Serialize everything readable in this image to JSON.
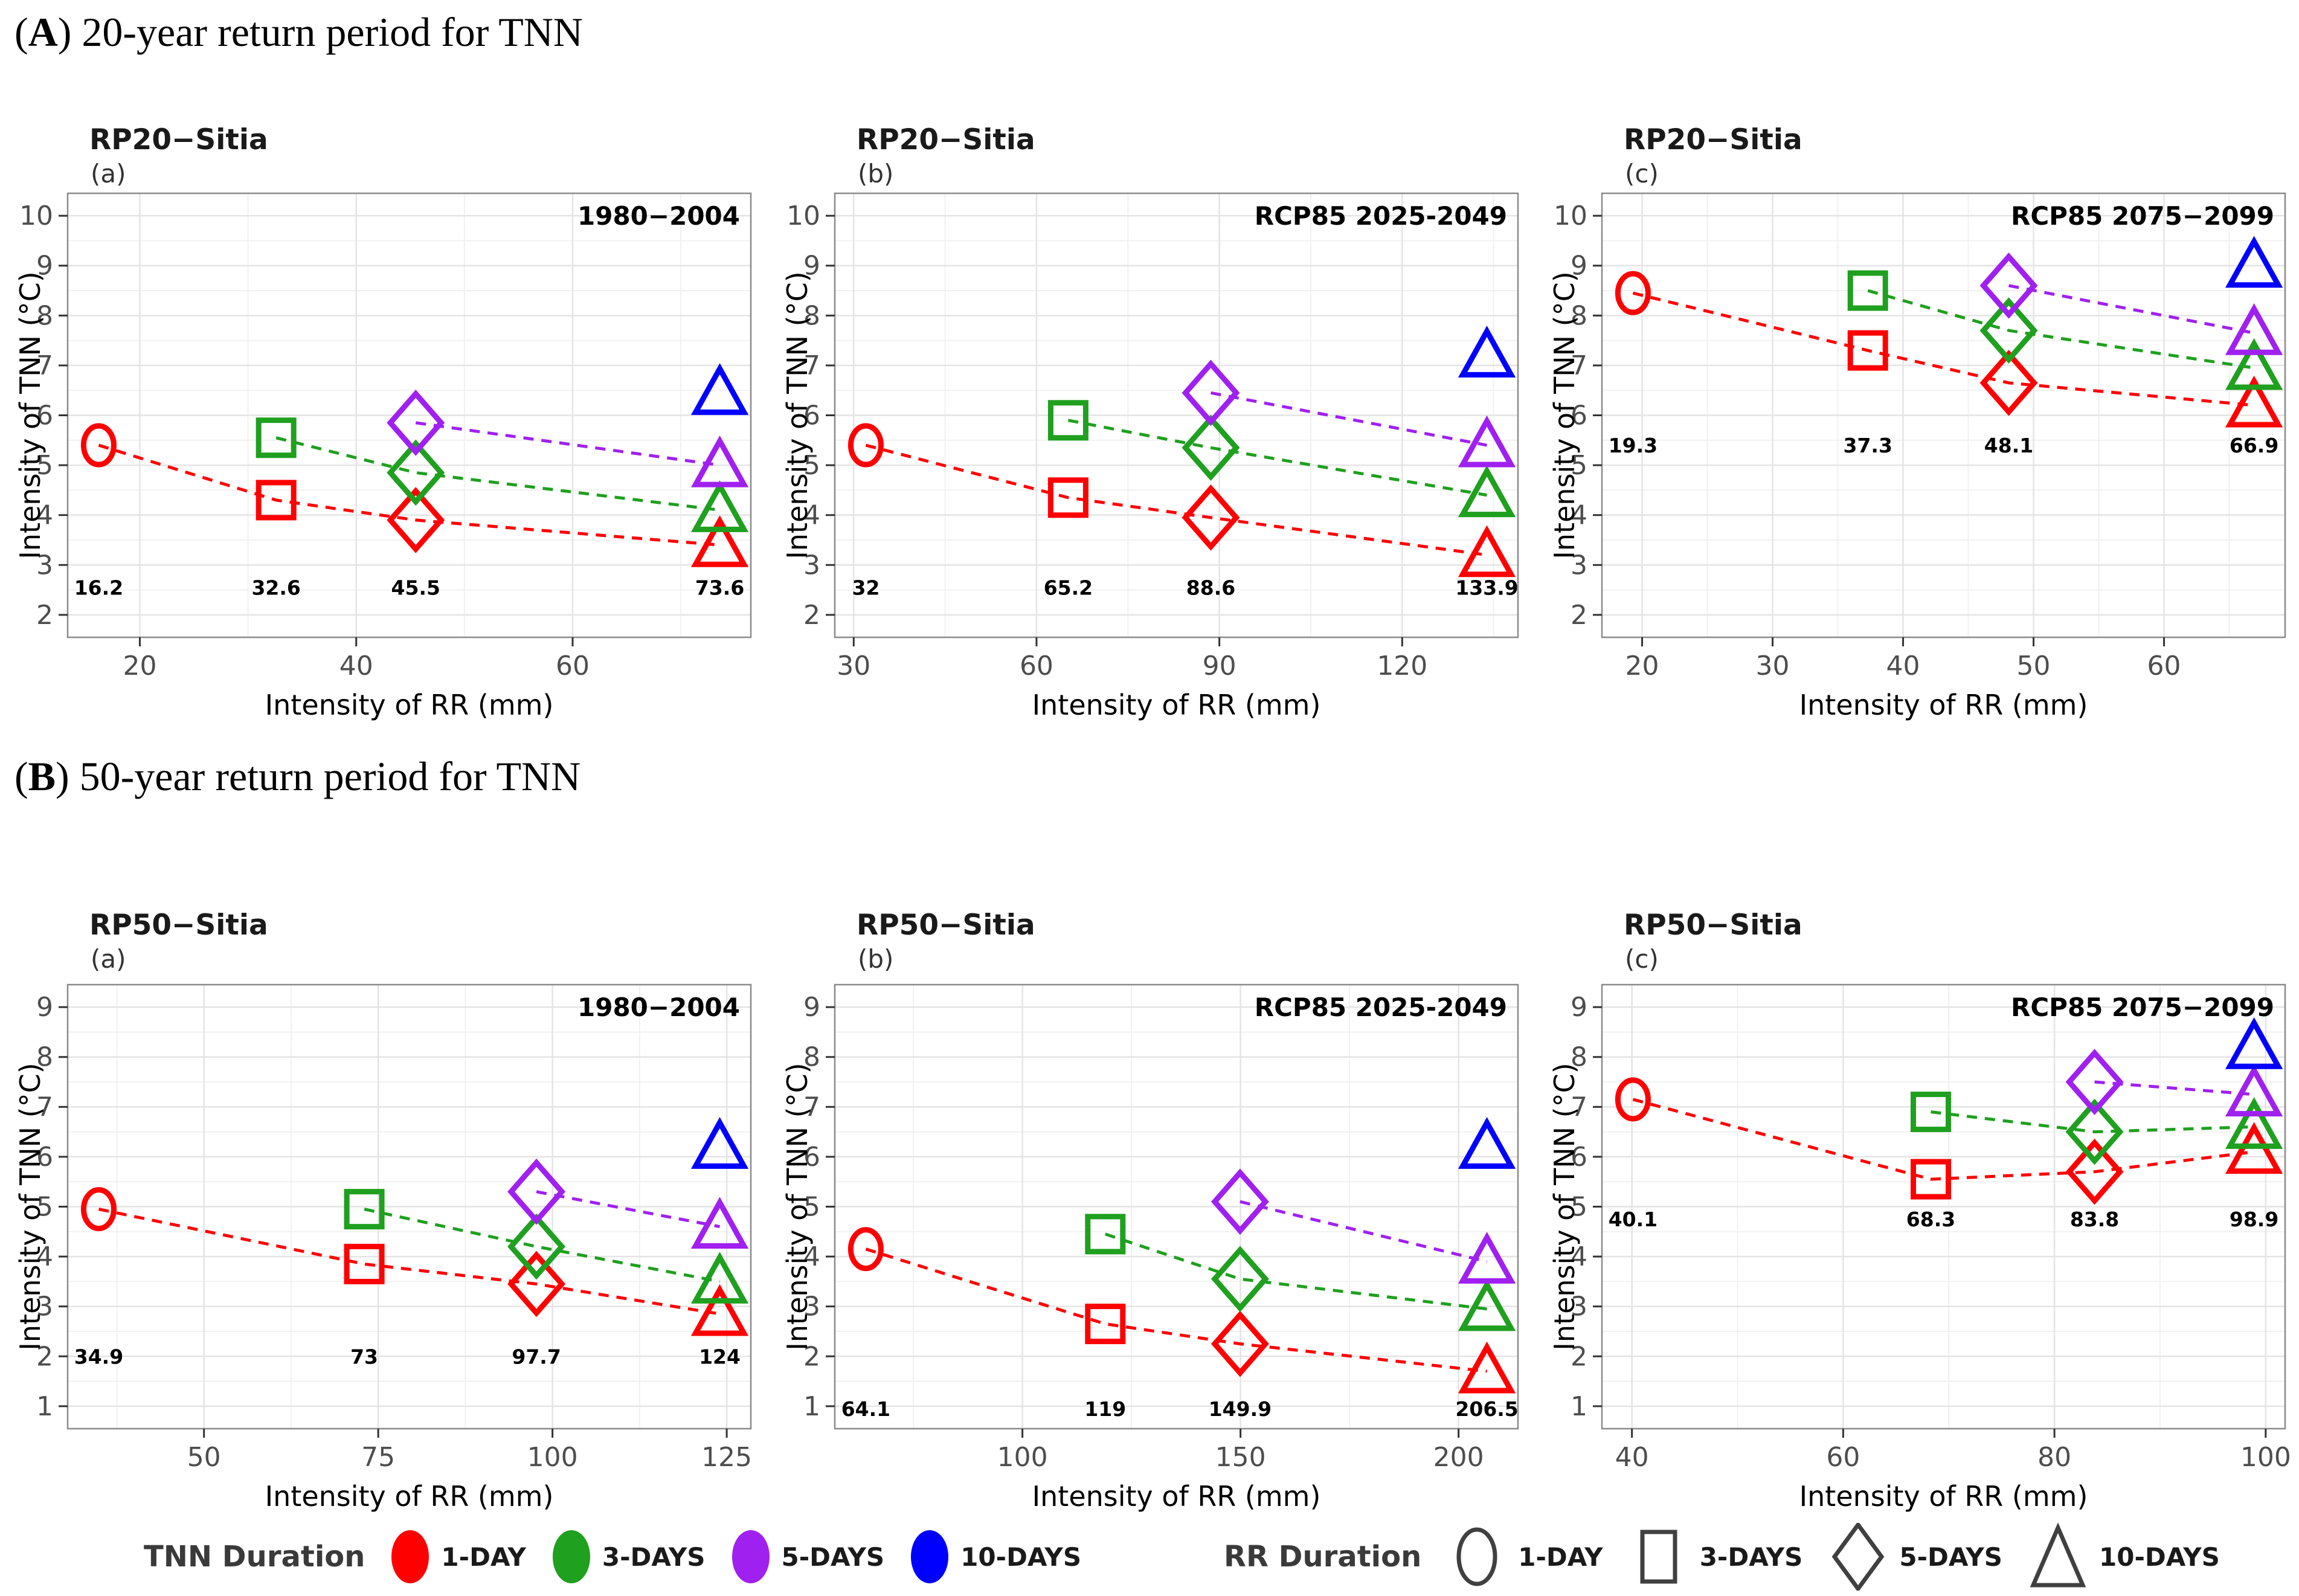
{
  "sections": [
    {
      "open": "(",
      "letter": "A",
      "rest": ") 20-year return period for TNN"
    },
    {
      "open": "(",
      "letter": "B",
      "rest": ") 50-year return period for TNN"
    }
  ],
  "legend": {
    "tnn": {
      "label": "TNN Duration",
      "items": [
        {
          "label": "1-DAY",
          "color_key": "red"
        },
        {
          "label": "3-DAYS",
          "color_key": "green"
        },
        {
          "label": "5-DAYS",
          "color_key": "purple"
        },
        {
          "label": "10-DAYS",
          "color_key": "blue"
        }
      ]
    },
    "rr": {
      "label": "RR Duration",
      "items": [
        {
          "label": "1-DAY",
          "shape": "circle"
        },
        {
          "label": "3-DAYS",
          "shape": "square"
        },
        {
          "label": "5-DAYS",
          "shape": "diamond"
        },
        {
          "label": "10-DAYS",
          "shape": "triangle"
        }
      ]
    }
  },
  "colors": {
    "red": "#FF0000",
    "green": "#1FA01F",
    "purple": "#A020F0",
    "blue": "#0000FF",
    "axis_text": "#4d4d4d",
    "title_text": "#1a1a1a",
    "tag_text": "#333333",
    "grid_major": "#e4e4e4",
    "grid_minor": "#f1f1f1",
    "panel_border": "#8a8a8a",
    "tick_mark": "#333333",
    "legend_shape": "#404040"
  },
  "chart_data": [
    {
      "id": "rp20-a",
      "type": "scatter",
      "title": "RP20−Sitia",
      "tag": "(a)",
      "period": "1980−2004",
      "xlabel": "Intensity of RR (mm)",
      "ylabel": "Intensity of TNN (°C)",
      "xlim": [
        13.33,
        76.47
      ],
      "ylim": [
        1.55,
        10.45
      ],
      "xticks": [
        20,
        40,
        60
      ],
      "yticks": [
        2,
        3,
        4,
        5,
        6,
        7,
        8,
        9,
        10
      ],
      "x_minor": [
        30,
        50,
        70
      ],
      "rr_values": [
        16.2,
        32.6,
        45.5,
        73.6
      ],
      "rr_annotation_y": 2.55,
      "rr_shapes": [
        "circle",
        "square",
        "diamond",
        "triangle"
      ],
      "series": [
        {
          "tnn_duration": "1-DAY",
          "color_key": "red",
          "y": [
            5.4,
            4.3,
            3.9,
            3.4
          ]
        },
        {
          "tnn_duration": "3-DAYS",
          "color_key": "green",
          "y": [
            null,
            5.55,
            4.85,
            4.1
          ]
        },
        {
          "tnn_duration": "5-DAYS",
          "color_key": "purple",
          "y": [
            null,
            null,
            5.85,
            5.0
          ]
        },
        {
          "tnn_duration": "10-DAYS",
          "color_key": "blue",
          "y": [
            null,
            null,
            null,
            6.45
          ]
        }
      ]
    },
    {
      "id": "rp20-b",
      "type": "scatter",
      "title": "RP20−Sitia",
      "tag": "(b)",
      "period": "RCP85 2025-2049",
      "xlabel": "Intensity of RR (mm)",
      "ylabel": "Intensity of TNN (°C)",
      "xlim": [
        26.9,
        139.0
      ],
      "ylim": [
        1.55,
        10.45
      ],
      "xticks": [
        30,
        60,
        90,
        120
      ],
      "yticks": [
        2,
        3,
        4,
        5,
        6,
        7,
        8,
        9,
        10
      ],
      "x_minor": [
        45,
        75,
        105,
        135
      ],
      "rr_values": [
        32,
        65.2,
        88.6,
        133.9
      ],
      "rr_annotation_y": 2.55,
      "rr_shapes": [
        "circle",
        "square",
        "diamond",
        "triangle"
      ],
      "series": [
        {
          "tnn_duration": "1-DAY",
          "color_key": "red",
          "y": [
            5.4,
            4.35,
            3.95,
            3.2
          ]
        },
        {
          "tnn_duration": "3-DAYS",
          "color_key": "green",
          "y": [
            null,
            5.9,
            5.35,
            4.4
          ]
        },
        {
          "tnn_duration": "5-DAYS",
          "color_key": "purple",
          "y": [
            null,
            null,
            6.45,
            5.4
          ]
        },
        {
          "tnn_duration": "10-DAYS",
          "color_key": "blue",
          "y": [
            null,
            null,
            null,
            7.2
          ]
        }
      ]
    },
    {
      "id": "rp20-c",
      "type": "scatter",
      "title": "RP20−Sitia",
      "tag": "(c)",
      "period": "RCP85 2075−2099",
      "xlabel": "Intensity of RR (mm)",
      "ylabel": "Intensity of TNN (°C)",
      "xlim": [
        16.92,
        69.28
      ],
      "ylim": [
        1.55,
        10.45
      ],
      "xticks": [
        20,
        30,
        40,
        50,
        60
      ],
      "yticks": [
        2,
        3,
        4,
        5,
        6,
        7,
        8,
        9,
        10
      ],
      "x_minor": [
        25,
        35,
        45,
        55,
        65
      ],
      "rr_values": [
        19.3,
        37.3,
        48.1,
        66.9
      ],
      "rr_annotation_y": 5.4,
      "rr_shapes": [
        "circle",
        "square",
        "diamond",
        "triangle"
      ],
      "series": [
        {
          "tnn_duration": "1-DAY",
          "color_key": "red",
          "y": [
            8.45,
            7.3,
            6.65,
            6.2
          ]
        },
        {
          "tnn_duration": "3-DAYS",
          "color_key": "green",
          "y": [
            null,
            8.5,
            7.7,
            6.95
          ]
        },
        {
          "tnn_duration": "5-DAYS",
          "color_key": "purple",
          "y": [
            null,
            null,
            8.6,
            7.65
          ]
        },
        {
          "tnn_duration": "10-DAYS",
          "color_key": "blue",
          "y": [
            null,
            null,
            null,
            9.0
          ]
        }
      ]
    },
    {
      "id": "rp50-a",
      "type": "scatter",
      "title": "RP50−Sitia",
      "tag": "(a)",
      "period": "1980−2004",
      "xlabel": "Intensity of RR (mm)",
      "ylabel": "Intensity of TNN (°C)",
      "xlim": [
        30.44,
        128.46
      ],
      "ylim": [
        0.55,
        9.45
      ],
      "xticks": [
        50,
        75,
        100,
        125
      ],
      "yticks": [
        1,
        2,
        3,
        4,
        5,
        6,
        7,
        8,
        9
      ],
      "x_minor": [
        37.5,
        62.5,
        87.5,
        112.5
      ],
      "rr_values": [
        34.9,
        73,
        97.7,
        124
      ],
      "rr_annotation_y": 2.0,
      "rr_shapes": [
        "circle",
        "square",
        "diamond",
        "triangle"
      ],
      "series": [
        {
          "tnn_duration": "1-DAY",
          "color_key": "red",
          "y": [
            4.95,
            3.85,
            3.45,
            2.85
          ]
        },
        {
          "tnn_duration": "3-DAYS",
          "color_key": "green",
          "y": [
            null,
            4.95,
            4.2,
            3.5
          ]
        },
        {
          "tnn_duration": "5-DAYS",
          "color_key": "purple",
          "y": [
            null,
            null,
            5.3,
            4.6
          ]
        },
        {
          "tnn_duration": "10-DAYS",
          "color_key": "blue",
          "y": [
            null,
            null,
            null,
            6.2
          ]
        }
      ]
    },
    {
      "id": "rp50-b",
      "type": "scatter",
      "title": "RP50−Sitia",
      "tag": "(b)",
      "period": "RCP85 2025-2049",
      "xlabel": "Intensity of RR (mm)",
      "ylabel": "Intensity of TNN (°C)",
      "xlim": [
        56.98,
        213.62
      ],
      "ylim": [
        0.55,
        9.45
      ],
      "xticks": [
        100,
        150,
        200
      ],
      "yticks": [
        1,
        2,
        3,
        4,
        5,
        6,
        7,
        8,
        9
      ],
      "x_minor": [
        75,
        125,
        175
      ],
      "rr_values": [
        64.1,
        119,
        149.9,
        206.5
      ],
      "rr_annotation_y": 0.95,
      "rr_shapes": [
        "circle",
        "square",
        "diamond",
        "triangle"
      ],
      "series": [
        {
          "tnn_duration": "1-DAY",
          "color_key": "red",
          "y": [
            4.15,
            2.65,
            2.25,
            1.7
          ]
        },
        {
          "tnn_duration": "3-DAYS",
          "color_key": "green",
          "y": [
            null,
            4.45,
            3.55,
            2.95
          ]
        },
        {
          "tnn_duration": "5-DAYS",
          "color_key": "purple",
          "y": [
            null,
            null,
            5.1,
            3.9
          ]
        },
        {
          "tnn_duration": "10-DAYS",
          "color_key": "blue",
          "y": [
            null,
            null,
            null,
            6.2
          ]
        }
      ]
    },
    {
      "id": "rp50-c",
      "type": "scatter",
      "title": "RP50−Sitia",
      "tag": "(c)",
      "period": "RCP85 2075−2099",
      "xlabel": "Intensity of RR (mm)",
      "ylabel": "Intensity of TNN (°C)",
      "xlim": [
        37.16,
        101.84
      ],
      "ylim": [
        0.55,
        9.45
      ],
      "xticks": [
        40,
        60,
        80,
        100
      ],
      "yticks": [
        1,
        2,
        3,
        4,
        5,
        6,
        7,
        8,
        9
      ],
      "x_minor": [
        50,
        70,
        90
      ],
      "rr_values": [
        40.1,
        68.3,
        83.8,
        98.9
      ],
      "rr_annotation_y": 4.75,
      "rr_shapes": [
        "circle",
        "square",
        "diamond",
        "triangle"
      ],
      "series": [
        {
          "tnn_duration": "1-DAY",
          "color_key": "red",
          "y": [
            7.15,
            5.55,
            5.7,
            6.1
          ]
        },
        {
          "tnn_duration": "3-DAYS",
          "color_key": "green",
          "y": [
            null,
            6.9,
            6.5,
            6.6
          ]
        },
        {
          "tnn_duration": "5-DAYS",
          "color_key": "purple",
          "y": [
            null,
            null,
            7.5,
            7.25
          ]
        },
        {
          "tnn_duration": "10-DAYS",
          "color_key": "blue",
          "y": [
            null,
            null,
            null,
            8.2
          ]
        }
      ]
    }
  ]
}
